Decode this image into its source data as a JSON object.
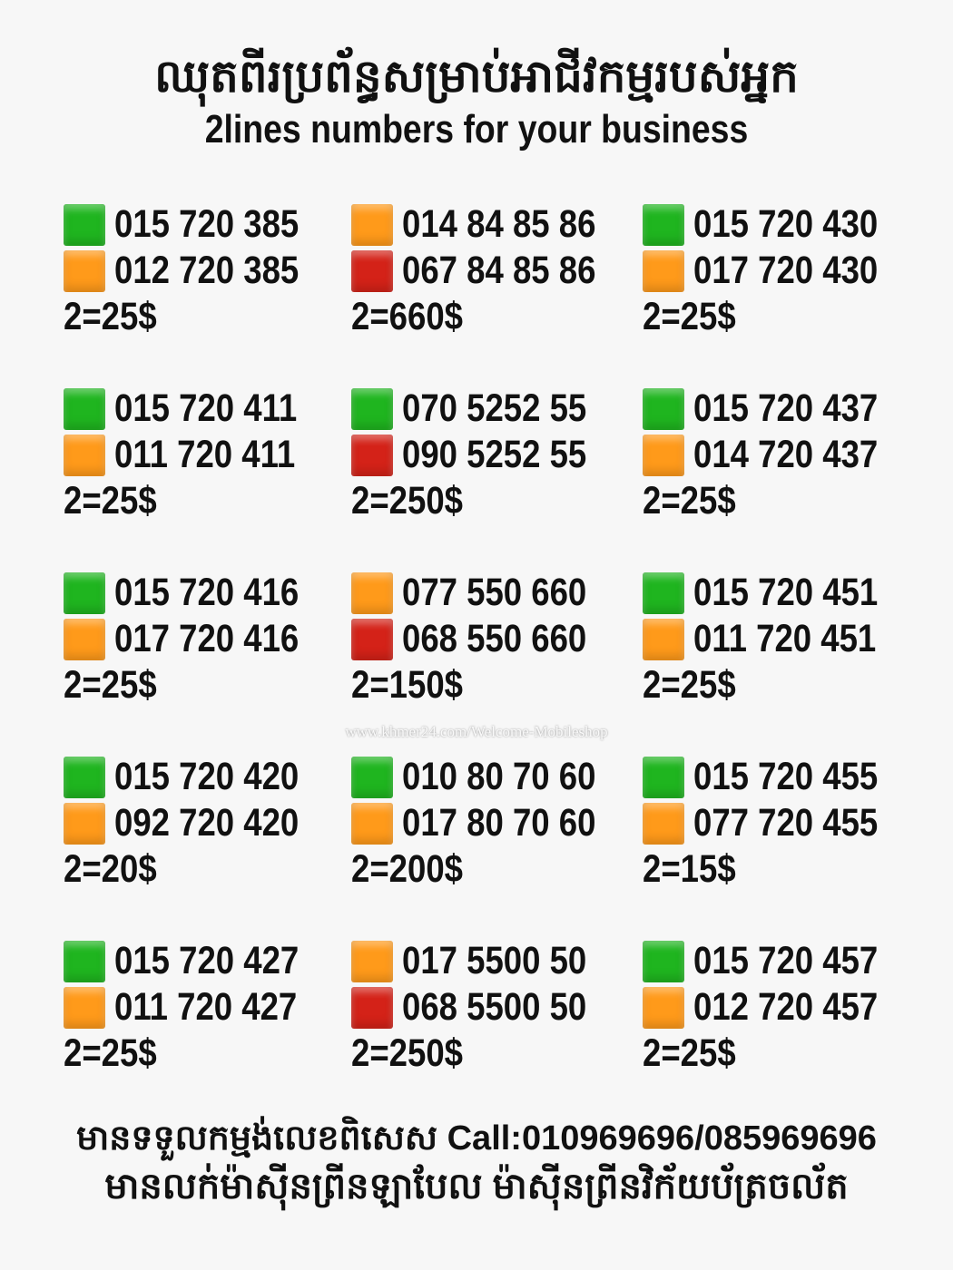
{
  "header": {
    "title_khmer": "ឈុតពីរប្រព័ន្ធសម្រាប់អាជីវកម្មរបស់អ្នក",
    "title_english": "2lines numbers for your business"
  },
  "colors": {
    "green": "#1fb51f",
    "orange": "#ff9a1a",
    "red": "#d42218"
  },
  "sets": [
    {
      "lines": [
        {
          "color": "green",
          "number": "015 720 385"
        },
        {
          "color": "orange",
          "number": "012 720 385"
        }
      ],
      "price": "2=25$"
    },
    {
      "lines": [
        {
          "color": "orange",
          "number": "014 84 85 86"
        },
        {
          "color": "red",
          "number": "067 84 85 86"
        }
      ],
      "price": "2=660$"
    },
    {
      "lines": [
        {
          "color": "green",
          "number": "015 720 430"
        },
        {
          "color": "orange",
          "number": "017 720 430"
        }
      ],
      "price": "2=25$"
    },
    {
      "lines": [
        {
          "color": "green",
          "number": "015 720 411"
        },
        {
          "color": "orange",
          "number": "011 720 411"
        }
      ],
      "price": "2=25$"
    },
    {
      "lines": [
        {
          "color": "green",
          "number": "070 5252 55"
        },
        {
          "color": "red",
          "number": "090 5252 55"
        }
      ],
      "price": "2=250$"
    },
    {
      "lines": [
        {
          "color": "green",
          "number": "015 720 437"
        },
        {
          "color": "orange",
          "number": "014 720 437"
        }
      ],
      "price": "2=25$"
    },
    {
      "lines": [
        {
          "color": "green",
          "number": "015 720 416"
        },
        {
          "color": "orange",
          "number": "017 720 416"
        }
      ],
      "price": "2=25$"
    },
    {
      "lines": [
        {
          "color": "orange",
          "number": "077 550 660"
        },
        {
          "color": "red",
          "number": "068 550 660"
        }
      ],
      "price": "2=150$"
    },
    {
      "lines": [
        {
          "color": "green",
          "number": "015 720 451"
        },
        {
          "color": "orange",
          "number": "011 720 451"
        }
      ],
      "price": "2=25$"
    },
    {
      "lines": [
        {
          "color": "green",
          "number": "015 720 420"
        },
        {
          "color": "orange",
          "number": "092 720 420"
        }
      ],
      "price": "2=20$"
    },
    {
      "lines": [
        {
          "color": "green",
          "number": "010 80 70 60"
        },
        {
          "color": "orange",
          "number": "017 80 70 60"
        }
      ],
      "price": "2=200$"
    },
    {
      "lines": [
        {
          "color": "green",
          "number": "015 720 455"
        },
        {
          "color": "orange",
          "number": "077 720 455"
        }
      ],
      "price": "2=15$"
    },
    {
      "lines": [
        {
          "color": "green",
          "number": "015 720 427"
        },
        {
          "color": "orange",
          "number": "011 720 427"
        }
      ],
      "price": "2=25$"
    },
    {
      "lines": [
        {
          "color": "orange",
          "number": "017 5500 50"
        },
        {
          "color": "red",
          "number": "068 5500 50"
        }
      ],
      "price": "2=250$"
    },
    {
      "lines": [
        {
          "color": "green",
          "number": "015 720 457"
        },
        {
          "color": "orange",
          "number": "012 720 457"
        }
      ],
      "price": "2=25$"
    }
  ],
  "watermark": "www.khmer24.com/Welcome-Mobileshop",
  "footer": {
    "line1": "មានទទួលកម្មង់លេខពិសេស Call:010969696/085969696",
    "line2": "មានលក់ម៉ាស៊ីនព្រីនឡាបែល ម៉ាស៊ីនព្រីនវិក័យប័ត្រចល័ត"
  }
}
